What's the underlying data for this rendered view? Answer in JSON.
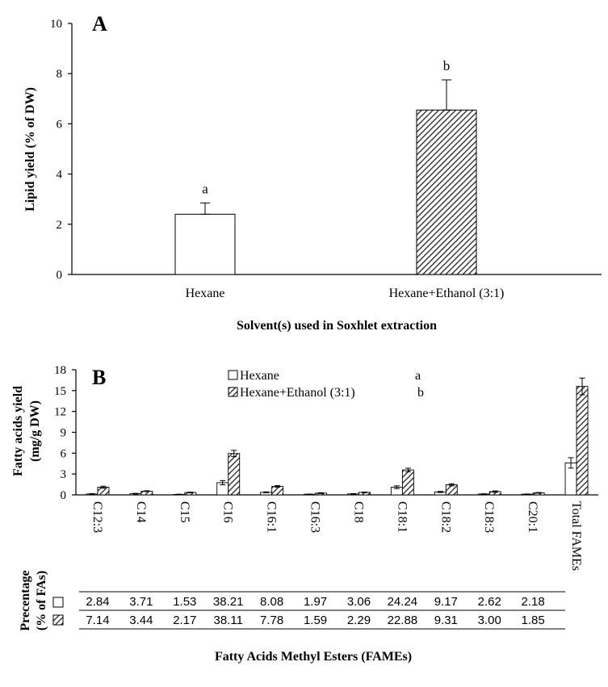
{
  "chart_data": [
    {
      "panel": "A",
      "type": "bar",
      "ylabel": "Lipid yield (% of DW)",
      "xlabel": "Solvent(s) used in Soxhlet extraction",
      "ylim": [
        0,
        10
      ],
      "yticks": [
        "0",
        "2",
        "4",
        "6",
        "8",
        "10"
      ],
      "categories": [
        "Hexane",
        "Hexane+Ethanol (3:1)"
      ],
      "values": [
        2.4,
        6.55
      ],
      "errors": [
        0.45,
        1.2
      ],
      "letters": [
        "a",
        "b"
      ],
      "fills": [
        "white",
        "hatched"
      ]
    },
    {
      "panel": "B",
      "type": "bar",
      "ylabel_line1": "Fatty acids yield",
      "ylabel_line2": "(mg/g DW)",
      "xlabel": "Fatty Acids Methyl Esters (FAMEs)",
      "ylim": [
        0,
        18
      ],
      "yticks": [
        "0",
        "3",
        "6",
        "9",
        "12",
        "15",
        "18"
      ],
      "categories": [
        "C12:3",
        "C14",
        "C15",
        "C16",
        "C16:1",
        "C16:3",
        "C18",
        "C18:1",
        "C18:2",
        "C18:3",
        "C20:1",
        "Total FAMEs"
      ],
      "series": [
        {
          "name": "Hexane",
          "letter": "a",
          "fill": "white",
          "values": [
            0.13,
            0.17,
            0.07,
            1.75,
            0.37,
            0.09,
            0.14,
            1.1,
            0.42,
            0.12,
            0.1,
            4.6
          ],
          "errors": [
            0.05,
            0.05,
            0.03,
            0.3,
            0.06,
            0.03,
            0.04,
            0.2,
            0.08,
            0.04,
            0.03,
            0.75
          ]
        },
        {
          "name": "Hexane+Ethanol (3:1)",
          "letter": "b",
          "fill": "hatched",
          "values": [
            1.1,
            0.53,
            0.34,
            5.95,
            1.21,
            0.25,
            0.36,
            3.58,
            1.45,
            0.47,
            0.29,
            15.6
          ],
          "errors": [
            0.15,
            0.06,
            0.05,
            0.45,
            0.12,
            0.06,
            0.05,
            0.25,
            0.15,
            0.1,
            0.05,
            1.2
          ]
        }
      ],
      "table": {
        "label_line1": "Precentage",
        "label_line2": "(% of FAs)",
        "rows": [
          [
            "2.84",
            "3.71",
            "1.53",
            "38.21",
            "8.08",
            "1.97",
            "3.06",
            "24.24",
            "9.17",
            "2.62",
            "2.18"
          ],
          [
            "7.14",
            "3.44",
            "2.17",
            "38.11",
            "7.78",
            "1.59",
            "2.29",
            "22.88",
            "9.31",
            "3.00",
            "1.85"
          ]
        ]
      }
    }
  ]
}
